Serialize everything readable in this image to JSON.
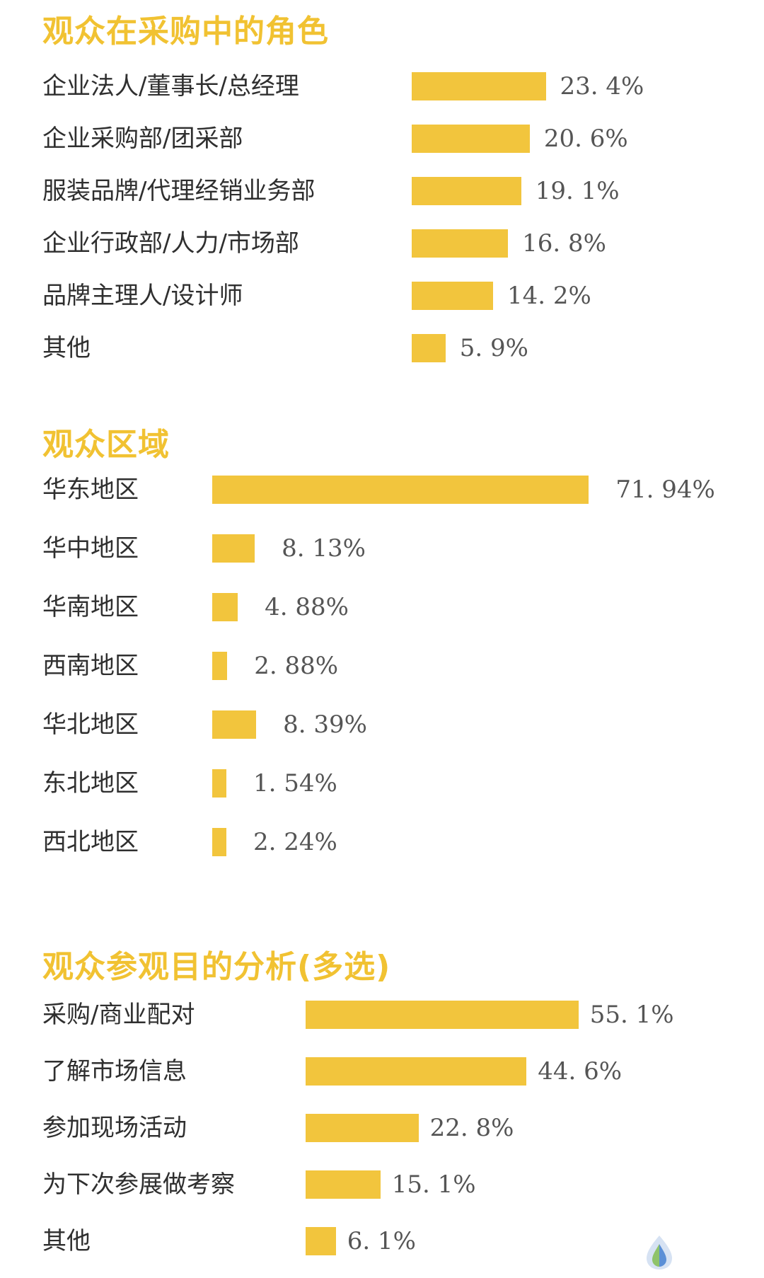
{
  "colors": {
    "title": "#f1c232",
    "bar": "#f2c53d",
    "label": "#2f2f2f",
    "value": "#555555"
  },
  "logo": {
    "icon": "leaf-drop-logo-icon"
  },
  "chart_data": [
    {
      "type": "bar",
      "orientation": "horizontal",
      "title": "观众在采购中的角色",
      "categories": [
        "企业法人/董事长/总经理",
        "企业采购部/团采部",
        "服装品牌/代理经销业务部",
        "企业行政部/人力/市场部",
        "品牌主理人/设计师",
        "其他"
      ],
      "values": [
        23.4,
        20.6,
        19.1,
        16.8,
        14.2,
        5.9
      ],
      "value_labels": [
        "23. 4%",
        "20. 6%",
        "19. 1%",
        "16. 8%",
        "14. 2%",
        "5. 9%"
      ],
      "unit": "%"
    },
    {
      "type": "bar",
      "orientation": "horizontal",
      "title": "观众区域",
      "categories": [
        "华东地区",
        "华中地区",
        "华南地区",
        "西南地区",
        "华北地区",
        "东北地区",
        "西北地区"
      ],
      "values": [
        71.94,
        8.13,
        4.88,
        2.88,
        8.39,
        1.54,
        2.24
      ],
      "value_labels": [
        "71. 94%",
        "8. 13%",
        "4. 88%",
        "2. 88%",
        "8. 39%",
        "1. 54%",
        "2. 24%"
      ],
      "unit": "%"
    },
    {
      "type": "bar",
      "orientation": "horizontal",
      "title": "观众参观目的分析(多选)",
      "categories": [
        "采购/商业配对",
        "了解市场信息",
        "参加现场活动",
        "为下次参展做考察",
        "其他"
      ],
      "values": [
        55.1,
        44.6,
        22.8,
        15.1,
        6.1
      ],
      "value_labels": [
        "55. 1%",
        "44. 6%",
        "22. 8%",
        "15. 1%",
        "6. 1%"
      ],
      "unit": "%"
    }
  ]
}
